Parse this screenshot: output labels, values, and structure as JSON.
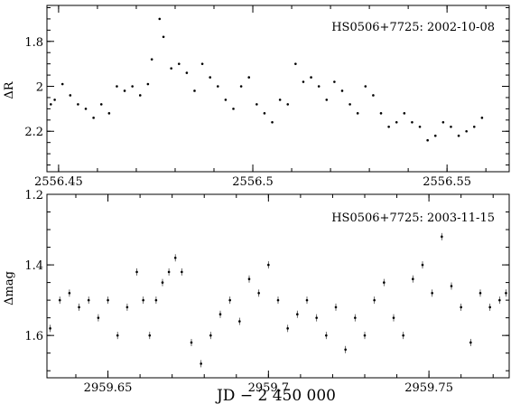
{
  "chart_data": [
    {
      "type": "scatter",
      "title": "HS0506+7725: 2002-10-08",
      "ylabel": "ΔR",
      "xlim": [
        2556.447,
        2556.566
      ],
      "ylim": [
        2.38,
        1.64
      ],
      "y_inverted": true,
      "xticks": [
        2556.45,
        2556.5,
        2556.55
      ],
      "xtick_labels": [
        "2556.45",
        "2556.5",
        "2556.55"
      ],
      "yticks": [
        1.8,
        2.0,
        2.2
      ],
      "ytick_labels": [
        "1.8",
        "2",
        "2.2"
      ],
      "series": [
        {
          "x": [
            2556.448,
            2556.449,
            2556.451,
            2556.453,
            2556.455,
            2556.457,
            2556.459,
            2556.461,
            2556.463,
            2556.465,
            2556.467,
            2556.469,
            2556.471,
            2556.473,
            2556.474,
            2556.476,
            2556.477,
            2556.479,
            2556.481,
            2556.483,
            2556.485,
            2556.487,
            2556.489,
            2556.491,
            2556.493,
            2556.495,
            2556.497,
            2556.499,
            2556.501,
            2556.503,
            2556.505,
            2556.507,
            2556.509,
            2556.511,
            2556.513,
            2556.515,
            2556.517,
            2556.519,
            2556.521,
            2556.523,
            2556.525,
            2556.527,
            2556.529,
            2556.531,
            2556.533,
            2556.535,
            2556.537,
            2556.539,
            2556.541,
            2556.543,
            2556.545,
            2556.547,
            2556.549,
            2556.551,
            2556.553,
            2556.555,
            2556.557,
            2556.559
          ],
          "y": [
            2.08,
            2.06,
            1.99,
            2.04,
            2.08,
            2.1,
            2.14,
            2.08,
            2.12,
            2.0,
            2.02,
            2.0,
            2.04,
            1.99,
            1.88,
            1.7,
            1.78,
            1.92,
            1.9,
            1.94,
            2.02,
            1.9,
            1.96,
            2.0,
            2.06,
            2.1,
            2.0,
            1.96,
            2.08,
            2.12,
            2.16,
            2.06,
            2.08,
            1.9,
            1.98,
            1.96,
            2.0,
            2.06,
            1.98,
            2.02,
            2.08,
            2.12,
            2.0,
            2.04,
            2.12,
            2.18,
            2.16,
            2.12,
            2.16,
            2.18,
            2.24,
            2.22,
            2.16,
            2.18,
            2.22,
            2.2,
            2.18,
            2.14
          ]
        }
      ]
    },
    {
      "type": "scatter",
      "title": "HS0506+7725: 2003-11-15",
      "ylabel": "Δmag",
      "xlabel": "JD  −  2 450 000",
      "xlim": [
        2959.631,
        2959.775
      ],
      "ylim": [
        1.72,
        1.2
      ],
      "y_inverted": true,
      "xticks": [
        2959.65,
        2959.7,
        2959.75
      ],
      "xtick_labels": [
        "2959.65",
        "2959.7",
        "2959.75"
      ],
      "yticks": [
        1.2,
        1.4,
        1.6
      ],
      "ytick_labels": [
        "1.2",
        "1.4",
        "1.6"
      ],
      "series": [
        {
          "x": [
            2959.632,
            2959.635,
            2959.638,
            2959.641,
            2959.644,
            2959.647,
            2959.65,
            2959.653,
            2959.656,
            2959.659,
            2959.661,
            2959.663,
            2959.665,
            2959.667,
            2959.669,
            2959.671,
            2959.673,
            2959.676,
            2959.679,
            2959.682,
            2959.685,
            2959.688,
            2959.691,
            2959.694,
            2959.697,
            2959.7,
            2959.703,
            2959.706,
            2959.709,
            2959.712,
            2959.715,
            2959.718,
            2959.721,
            2959.724,
            2959.727,
            2959.73,
            2959.733,
            2959.736,
            2959.739,
            2959.742,
            2959.745,
            2959.748,
            2959.751,
            2959.754,
            2959.757,
            2959.76,
            2959.763,
            2959.766,
            2959.769,
            2959.772,
            2959.774
          ],
          "y": [
            1.58,
            1.5,
            1.48,
            1.52,
            1.5,
            1.55,
            1.5,
            1.6,
            1.52,
            1.42,
            1.5,
            1.6,
            1.5,
            1.45,
            1.42,
            1.38,
            1.42,
            1.62,
            1.68,
            1.6,
            1.54,
            1.5,
            1.56,
            1.44,
            1.48,
            1.4,
            1.5,
            1.58,
            1.54,
            1.5,
            1.55,
            1.6,
            1.52,
            1.64,
            1.55,
            1.6,
            1.5,
            1.45,
            1.55,
            1.6,
            1.44,
            1.4,
            1.48,
            1.32,
            1.46,
            1.52,
            1.62,
            1.48,
            1.52,
            1.5,
            1.48
          ]
        }
      ]
    }
  ]
}
